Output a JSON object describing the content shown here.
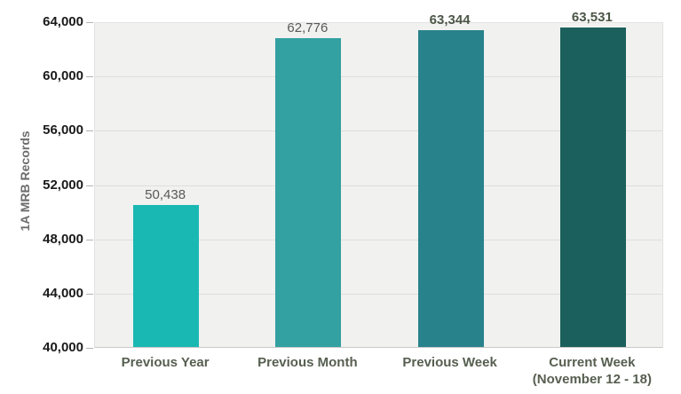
{
  "chart_data": {
    "type": "bar",
    "title": "",
    "ylabel": "1A MRB Records",
    "xlabel": "",
    "categories": [
      "Previous Year",
      "Previous Month",
      "Previous Week",
      "Current Week (November 12 - 18)"
    ],
    "category_lines": [
      [
        "Previous Year"
      ],
      [
        "Previous Month"
      ],
      [
        "Previous Week"
      ],
      [
        "Current Week",
        "(November 12 - 18)"
      ]
    ],
    "values": [
      50438,
      62776,
      63344,
      63531
    ],
    "value_labels": [
      "50,438",
      "62,776",
      "63,344",
      "63,531"
    ],
    "bar_colors": [
      "#1ab8b2",
      "#33a0a1",
      "#28828b",
      "#1b605c"
    ],
    "value_label_colors": [
      "#595959",
      "#595959",
      "#4b5647",
      "#4b5647"
    ],
    "value_label_bold": [
      false,
      false,
      true,
      true
    ],
    "ylim": [
      40000,
      64000
    ],
    "ytick_step": 4000,
    "ytick_labels": [
      "40,000",
      "44,000",
      "48,000",
      "52,000",
      "56,000",
      "60,000",
      "64,000"
    ],
    "grid": true,
    "legend": "none",
    "style": {
      "plot_bg": "#f1f1f0",
      "gridline_color": "#dedede",
      "axis_line_color": "#c9c9c9",
      "tick_mark_color": "#b3b3b3",
      "ytick_color": "#1a1a1a",
      "xlabel_color": "#565f50",
      "ylabel_color": "#6d6d6d"
    }
  }
}
